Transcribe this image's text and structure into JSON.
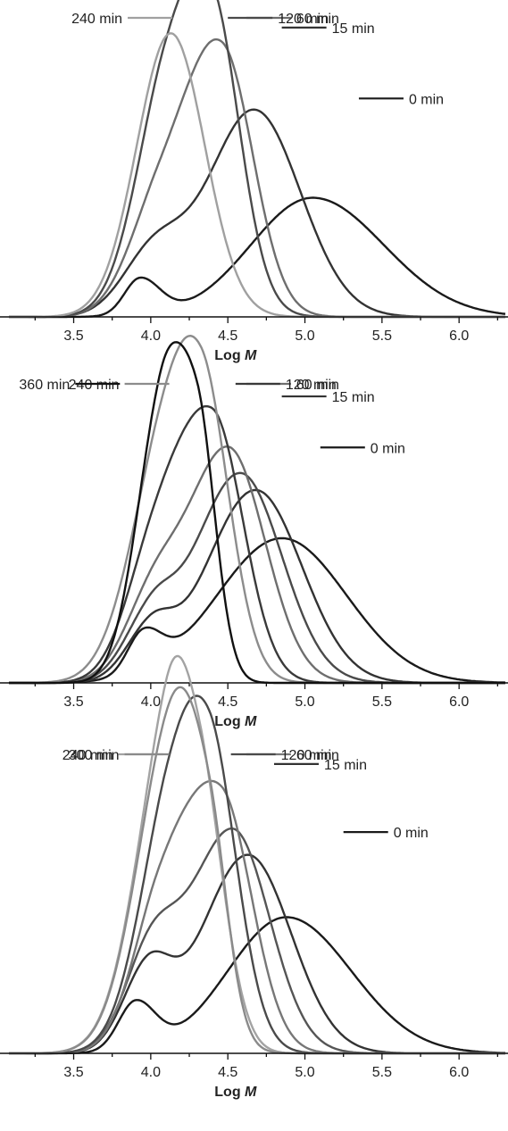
{
  "chart_data": [
    {
      "type": "line",
      "xlabel": "Log",
      "xlabel_italic": "M",
      "xlim": [
        3.08,
        6.3
      ],
      "ylim": [
        0,
        1.07
      ],
      "x_ticks": [
        "3.5",
        "4.0",
        "4.5",
        "5.0",
        "5.5",
        "6.0"
      ],
      "grid": false,
      "y_axis_shown": false,
      "series": [
        {
          "name": "0 min",
          "color": "#1a1a1a",
          "peak": 5.05,
          "height": 0.42,
          "components": [
            [
              5.05,
              0.42,
              0.4,
              0.46
            ],
            [
              3.93,
              0.13,
              0.1,
              0.13
            ]
          ],
          "label_y": 0.77,
          "label_x": 5.35
        },
        {
          "name": "15 min",
          "color": "#333333",
          "peak": 4.67,
          "height": 0.73,
          "components": [
            [
              4.67,
              0.73,
              0.3,
              0.3
            ],
            [
              4.02,
              0.22,
              0.2,
              0.2
            ]
          ],
          "label_y": 1.02,
          "label_x": 4.85
        },
        {
          "name": "60 min",
          "color": "#6e6e6e",
          "peak": 4.46,
          "height": 0.88,
          "components": [
            [
              4.47,
              0.88,
              0.24,
              0.2
            ],
            [
              4.05,
              0.35,
              0.2,
              0.25
            ]
          ],
          "label_y": 1.21,
          "label_x": 4.62
        },
        {
          "name": "120 min",
          "color": "#4a4a4a",
          "peak": 4.4,
          "height": 0.92,
          "components": [
            [
              4.4,
              0.9,
              0.26,
              0.18
            ],
            [
              4.08,
              0.52,
              0.2,
              0.28
            ]
          ],
          "label_y": 1.29,
          "label_x": 4.5
        },
        {
          "name": "240 min",
          "color": "#a0a0a0",
          "peak": 4.13,
          "height": 1.0,
          "components": [
            [
              4.13,
              1.0,
              0.22,
              0.22
            ]
          ],
          "label_y": 1.2,
          "label_x": 4.14,
          "label_side": "left"
        }
      ]
    },
    {
      "type": "line",
      "xlabel": "Log",
      "xlabel_italic": "M",
      "xlim": [
        3.08,
        6.3
      ],
      "ylim": [
        0,
        1.07
      ],
      "x_ticks": [
        "3.5",
        "4.0",
        "4.5",
        "5.0",
        "5.5",
        "6.0"
      ],
      "grid": false,
      "y_axis_shown": false,
      "series": [
        {
          "name": "0 min",
          "color": "#1a1a1a",
          "peak": 4.85,
          "height": 0.53,
          "components": [
            [
              4.85,
              0.51,
              0.42,
              0.42
            ],
            [
              3.95,
              0.14,
              0.1,
              0.12
            ]
          ],
          "label_y": 0.83,
          "label_x": 5.1
        },
        {
          "name": "15 min",
          "color": "#333333",
          "peak": 4.68,
          "height": 0.69,
          "components": [
            [
              4.68,
              0.68,
              0.32,
              0.3
            ],
            [
              4.0,
              0.17,
              0.16,
              0.14
            ]
          ],
          "label_y": 1.01,
          "label_x": 4.85
        },
        {
          "name": "",
          "color": "#4a4a4a",
          "peak": 4.58,
          "height": 0.76,
          "components": [
            [
              4.58,
              0.74,
              0.3,
              0.27
            ],
            [
              4.0,
              0.2,
              0.17,
              0.15
            ]
          ]
        },
        {
          "name": "60 min",
          "color": "#6e6e6e",
          "peak": 4.5,
          "height": 0.84,
          "components": [
            [
              4.5,
              0.83,
              0.28,
              0.24
            ],
            [
              4.0,
              0.23,
              0.18,
              0.17
            ]
          ],
          "label_y": 1.17,
          "label_x": 4.62
        },
        {
          "name": "120 min",
          "color": "#3a3a3a",
          "peak": 4.4,
          "height": 0.93,
          "components": [
            [
              4.4,
              0.93,
              0.27,
              0.2
            ],
            [
              4.0,
              0.28,
              0.18,
              0.2
            ]
          ],
          "label_y": 1.29,
          "label_x": 4.55
        },
        {
          "name": "240 min",
          "color": "#8c8c8c",
          "peak": 4.33,
          "height": 0.96,
          "components": [
            [
              4.33,
              0.9,
              0.24,
              0.18
            ],
            [
              4.05,
              0.5,
              0.22,
              0.26
            ]
          ],
          "label_y": 1.24,
          "label_x": 4.12,
          "label_side": "left"
        },
        {
          "name": "360 min",
          "color": "#111111",
          "peak": 4.28,
          "height": 0.96,
          "components": [
            [
              4.3,
              0.9,
              0.16,
              0.12
            ],
            [
              4.05,
              0.8,
              0.16,
              0.14
            ]
          ],
          "label_y": 1.26,
          "label_x": 3.8,
          "label_side": "left"
        }
      ]
    },
    {
      "type": "line",
      "xlabel": "Log",
      "xlabel_italic": "M",
      "xlim": [
        3.08,
        6.3
      ],
      "ylim": [
        0,
        1.07
      ],
      "x_ticks": [
        "3.5",
        "4.0",
        "4.5",
        "5.0",
        "5.5",
        "6.0"
      ],
      "grid": false,
      "y_axis_shown": false,
      "series": [
        {
          "name": "0 min",
          "color": "#1a1a1a",
          "peak": 4.88,
          "height": 0.49,
          "components": [
            [
              4.88,
              0.48,
              0.38,
              0.42
            ],
            [
              3.9,
              0.17,
              0.11,
              0.13
            ]
          ],
          "label_y": 0.78,
          "label_x": 5.25
        },
        {
          "name": "15 min",
          "color": "#333333",
          "peak": 4.63,
          "height": 0.71,
          "components": [
            [
              4.63,
              0.7,
              0.3,
              0.28
            ],
            [
              3.98,
              0.28,
              0.16,
              0.15
            ]
          ],
          "label_y": 1.02,
          "label_x": 4.8
        },
        {
          "name": "",
          "color": "#555555",
          "peak": 4.53,
          "height": 0.8,
          "components": [
            [
              4.53,
              0.79,
              0.28,
              0.24
            ],
            [
              4.0,
              0.32,
              0.17,
              0.17
            ]
          ]
        },
        {
          "name": "60 min",
          "color": "#777777",
          "peak": 4.46,
          "height": 0.88,
          "components": [
            [
              4.46,
              0.87,
              0.26,
              0.2
            ],
            [
              4.05,
              0.4,
              0.18,
              0.22
            ]
          ],
          "label_y": 1.19,
          "label_x": 4.62
        },
        {
          "name": "120 min",
          "color": "#4a4a4a",
          "peak": 4.38,
          "height": 0.91,
          "components": [
            [
              4.38,
              0.9,
              0.24,
              0.18
            ],
            [
              4.1,
              0.55,
              0.2,
              0.26
            ]
          ],
          "label_y": 1.27,
          "label_x": 4.52
        },
        {
          "name": "240 min",
          "color": "#a3a3a3",
          "peak": 4.3,
          "height": 0.91,
          "components": [
            [
              4.32,
              0.85,
              0.22,
              0.16
            ],
            [
              4.1,
              0.8,
              0.22,
              0.16
            ]
          ],
          "label_y": 1.17,
          "label_x": 4.08,
          "label_side": "left"
        },
        {
          "name": "300 min",
          "color": "#8a8a8a",
          "peak": 4.12,
          "height": 1.0,
          "components": [
            [
              4.12,
              1.0,
              0.22,
              0.2
            ],
            [
              4.38,
              0.55,
              0.2,
              0.12
            ]
          ],
          "label_y": 1.29,
          "label_x": 4.12,
          "label_side": "left"
        }
      ]
    }
  ]
}
